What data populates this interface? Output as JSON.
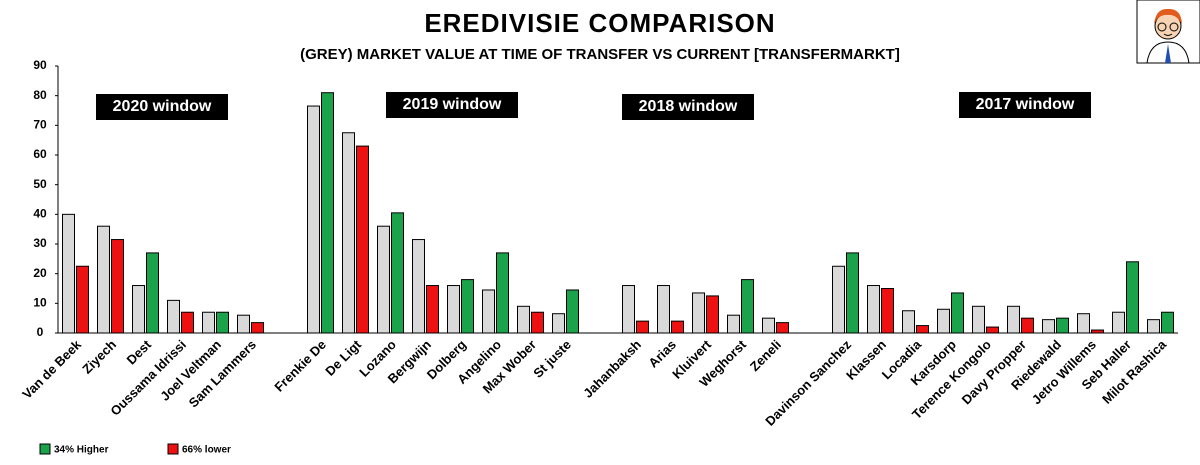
{
  "chart_data": {
    "type": "bar",
    "title": "EREDIVISIE COMPARISON",
    "subtitle": "(GREY) MARKET VALUE AT TIME OF TRANSFER VS CURRENT [TRANSFERMARKT]",
    "categories": [
      "Van de Beek",
      "Ziyech",
      "Dest",
      "Oussama Idrissi",
      "Joel Veltman",
      "Sam Lammers",
      null,
      "Frenkie De",
      "De Ligt",
      "Lozano",
      "Bergwijn",
      "Dolberg",
      "Angelino",
      "Max Wober",
      "St juste",
      null,
      "Jahanbaksh",
      "Arias",
      "Kluivert",
      "Weghorst",
      "Zeneli",
      null,
      "Davinson Sanchez",
      "Klassen",
      "Locadia",
      "Karsdorp",
      "Terence Kongolo",
      "Davy Propper",
      "Riedewald",
      "Jetro Willems",
      "Seb Haller",
      "Milot Rashica"
    ],
    "series": [
      {
        "color": "#d9d9d9",
        "values": [
          40,
          36,
          16,
          11,
          7,
          6,
          null,
          76.5,
          67.5,
          36,
          31.5,
          16,
          14.5,
          9,
          6.5,
          null,
          16,
          16,
          13.5,
          6,
          5,
          null,
          22.5,
          16,
          7.5,
          8,
          9,
          9,
          4.5,
          6.5,
          7,
          4.5
        ]
      },
      {
        "colors": [
          "#ee1111",
          "#ee1111",
          "#1aa34a",
          "#ee1111",
          "#1aa34a",
          "#ee1111",
          null,
          "#1aa34a",
          "#ee1111",
          "#1aa34a",
          "#ee1111",
          "#1aa34a",
          "#1aa34a",
          "#ee1111",
          "#1aa34a",
          null,
          "#ee1111",
          "#ee1111",
          "#ee1111",
          "#1aa34a",
          "#ee1111",
          null,
          "#1aa34a",
          "#ee1111",
          "#ee1111",
          "#1aa34a",
          "#ee1111",
          "#ee1111",
          "#1aa34a",
          "#ee1111",
          "#1aa34a",
          "#1aa34a"
        ],
        "values": [
          22.5,
          31.5,
          27,
          7,
          7,
          3.5,
          null,
          81,
          63,
          40.5,
          16,
          18,
          27,
          7,
          14.5,
          null,
          4,
          4,
          12.5,
          18,
          3.5,
          null,
          27,
          15,
          2.5,
          13.5,
          2,
          5,
          5,
          1,
          24,
          7
        ]
      }
    ],
    "annotations": [
      "2020 window",
      "2019 window",
      "2018 window",
      "2017 window"
    ],
    "legend": [
      {
        "label": "34% Higher",
        "color": "#1aa34a"
      },
      {
        "label": "66% lower",
        "color": "#ee1111"
      }
    ],
    "ylim": [
      0,
      90
    ],
    "yticks": [
      0,
      10,
      20,
      30,
      40,
      50,
      60,
      70,
      80,
      90
    ],
    "grid": false
  }
}
